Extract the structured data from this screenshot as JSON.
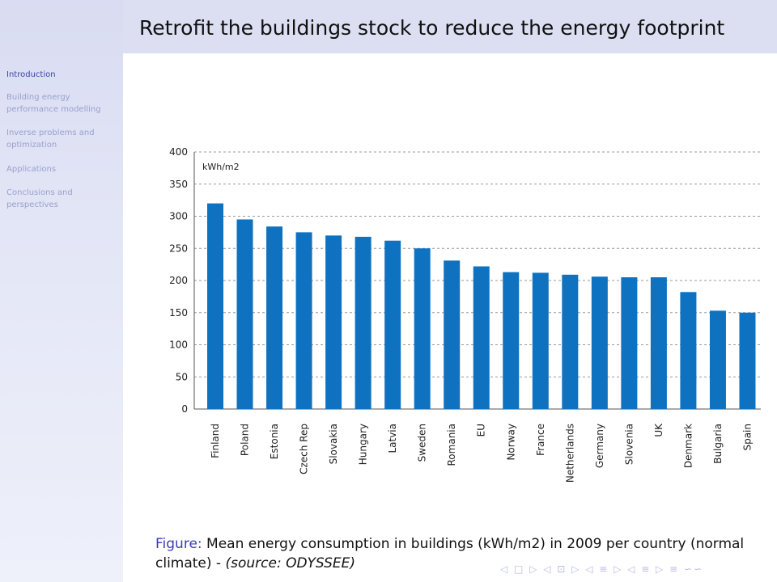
{
  "slide": {
    "title": "Retrofit the buildings stock to reduce the energy footprint"
  },
  "sidebar": {
    "items": [
      {
        "label": "Introduction",
        "active": true
      },
      {
        "label": "Building energy performance modelling",
        "active": false
      },
      {
        "label": "Inverse problems and optimization",
        "active": false
      },
      {
        "label": "Applications",
        "active": false
      },
      {
        "label": "Conclusions and perspectives",
        "active": false
      }
    ]
  },
  "caption": {
    "label": "Figure:",
    "text": "Mean energy consumption in buildings (kWh/m2) in 2009 per country (normal climate) -",
    "source": "(source: ODYSSEE)"
  },
  "navigation_symbols": "◁ □ ▷ ◁ ⊡ ▷ ◁ ≡ ▷ ◁ ≡ ▷ ≡ ∽∽",
  "colors": {
    "bar": "#0e72c1",
    "header": "#dcdff2",
    "caption_label": "#3b3bb5"
  },
  "chart_data": {
    "type": "bar",
    "unit_label": "kWh/m2",
    "categories": [
      "Finland",
      "Poland",
      "Estonia",
      "Czech Rep",
      "Slovakia",
      "Hungary",
      "Latvia",
      "Sweden",
      "Romania",
      "EU",
      "Norway",
      "France",
      "Netherlands",
      "Germany",
      "Slovenia",
      "UK",
      "Denmark",
      "Bulgaria",
      "Spain"
    ],
    "values": [
      320,
      295,
      284,
      275,
      270,
      268,
      262,
      250,
      231,
      222,
      213,
      212,
      209,
      206,
      205,
      205,
      182,
      153,
      150
    ],
    "yticks": [
      0,
      50,
      100,
      150,
      200,
      250,
      300,
      350,
      400
    ],
    "ylim": [
      0,
      400
    ],
    "grid": true,
    "title": "",
    "xlabel": "",
    "ylabel": ""
  }
}
